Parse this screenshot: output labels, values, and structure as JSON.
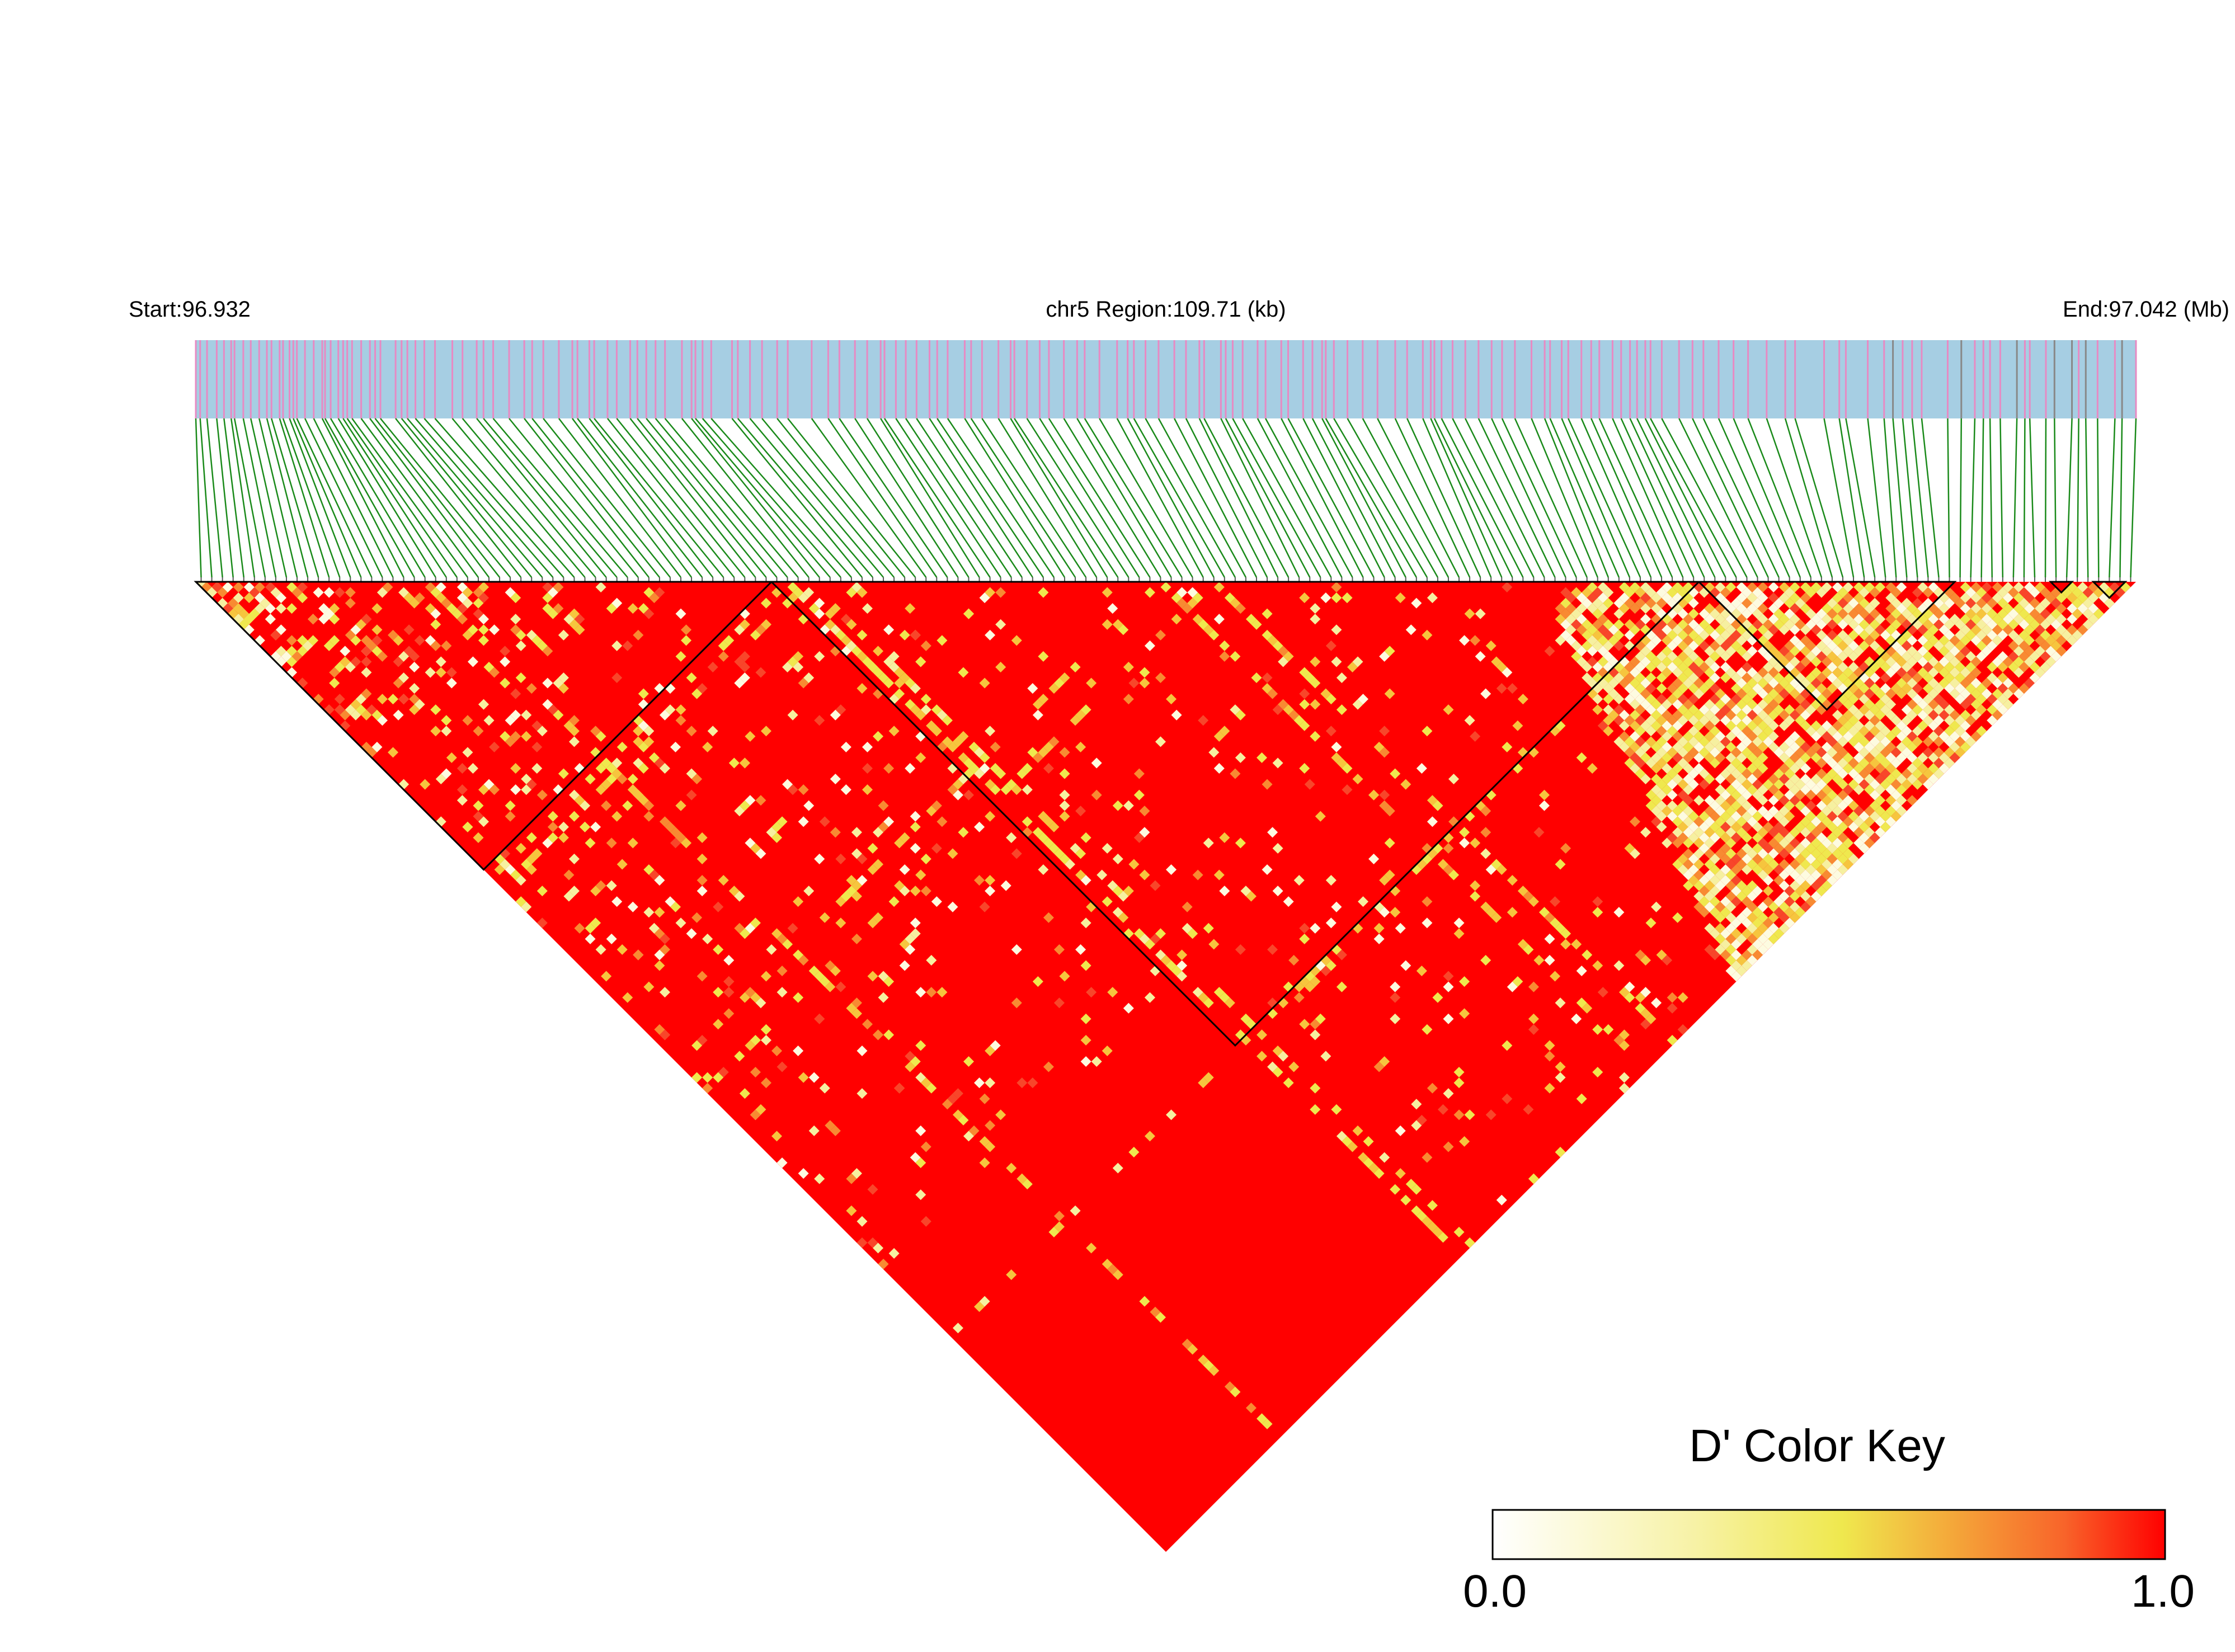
{
  "header": {
    "start_label": "Start:96.932",
    "region_label": "chr5 Region:109.71 (kb)",
    "end_label": "End:97.042 (Mb)"
  },
  "chart_data": {
    "type": "heatmap",
    "description_of_encoding": "",
    "region": {
      "chromosome": "chr5",
      "start_mb": 96.932,
      "end_mb": 97.042,
      "length_kb": 109.71
    },
    "marker_count": 182,
    "measure": "D'",
    "value_range": [
      0.0,
      1.0
    ],
    "color_key": {
      "title": "D' Color Key",
      "min_label": "0.0",
      "max_label": "1.0",
      "colors": [
        "#ffffff",
        "#f7f3b0",
        "#efe84e",
        "#f4a93a",
        "#f8642a",
        "#ff0000"
      ]
    },
    "bar_colors": {
      "track": "#a6cee3",
      "snp_tick": "#e78ac3",
      "snp_tick_gray": "#888888",
      "connector": "#1a8a1a",
      "ld_high": "#ff0000"
    },
    "blocks": [
      {
        "start_index": 0,
        "end_index": 54
      },
      {
        "start_index": 54,
        "end_index": 141
      },
      {
        "start_index": 141,
        "end_index": 165
      },
      {
        "start_index": 174,
        "end_index": 176
      },
      {
        "start_index": 178,
        "end_index": 181
      }
    ],
    "low_ld_zone": "ending markers (last ~45 SNPs) show pale yellow / white values near the diagonal edge"
  }
}
